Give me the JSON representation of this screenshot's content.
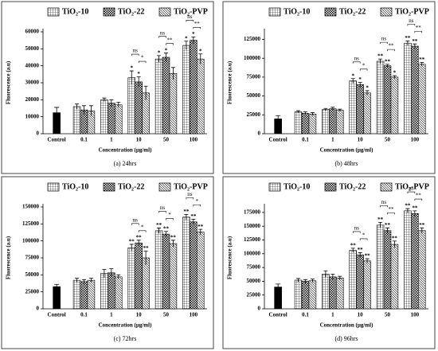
{
  "chart_data": [
    {
      "type": "bar",
      "caption": "(a) 24hrs",
      "xlabel": "Concentration (µg/ml)",
      "ylabel": "Fluorescence (a.u)",
      "categories": [
        "Control",
        "0.1",
        "1",
        "10",
        "50",
        "100"
      ],
      "control": {
        "value": 12500,
        "error": 3000,
        "color": "#000000"
      },
      "series": [
        {
          "name": "TiO₂-10",
          "pattern": "grid",
          "color": "#000000",
          "values": [
            null,
            16000,
            20000,
            33000,
            44000,
            52000
          ],
          "errors": [
            null,
            1500,
            1000,
            4000,
            2000,
            2500
          ],
          "stars": [
            null,
            null,
            null,
            "*",
            "*",
            "*"
          ]
        },
        {
          "name": "TiO₂-22",
          "pattern": "checker",
          "color": "#000000",
          "values": [
            null,
            14000,
            18000,
            30500,
            45000,
            55000
          ],
          "errors": [
            null,
            2500,
            2000,
            3000,
            2500,
            2000
          ],
          "stars": [
            null,
            null,
            null,
            "*",
            "*",
            "*"
          ]
        },
        {
          "name": "TiO₂-PVP",
          "pattern": "hatch",
          "color": "#000000",
          "values": [
            null,
            13500,
            17000,
            24000,
            35500,
            44000
          ],
          "errors": [
            null,
            3000,
            1500,
            4000,
            3500,
            3000
          ],
          "stars": [
            null,
            null,
            null,
            null,
            null,
            "*"
          ]
        }
      ],
      "brackets": [
        null,
        null,
        null,
        [
          "ns",
          "*"
        ],
        [
          "ns",
          "**"
        ],
        [
          "ns",
          "**"
        ]
      ],
      "ylim": [
        0,
        60000
      ],
      "yticks": [
        0,
        10000,
        20000,
        30000,
        40000,
        50000,
        60000
      ]
    },
    {
      "type": "bar",
      "caption": "(b) 48hrs",
      "xlabel": "Concentration (µg/ml)",
      "ylabel": "Fluorescence (a.u)",
      "categories": [
        "Control",
        "0.1",
        "1",
        "10",
        "50",
        "100"
      ],
      "control": {
        "value": 20000,
        "error": 4000,
        "color": "#000000"
      },
      "series": [
        {
          "name": "TiO₂-10",
          "pattern": "grid",
          "color": "#000000",
          "values": [
            null,
            29000,
            32000,
            70000,
            96000,
            120000
          ],
          "errors": [
            null,
            1500,
            1500,
            3000,
            3000,
            3000
          ],
          "stars": [
            null,
            null,
            null,
            "*",
            "**",
            "**"
          ]
        },
        {
          "name": "TiO₂-22",
          "pattern": "checker",
          "color": "#000000",
          "values": [
            null,
            27000,
            33000,
            65000,
            90000,
            116000
          ],
          "errors": [
            null,
            2000,
            2000,
            3000,
            2000,
            3000
          ],
          "stars": [
            null,
            null,
            null,
            "*",
            "**",
            "**"
          ]
        },
        {
          "name": "TiO₂-PVP",
          "pattern": "hatch",
          "color": "#000000",
          "values": [
            null,
            26000,
            31000,
            54000,
            75000,
            92000
          ],
          "errors": [
            null,
            2000,
            1500,
            3000,
            2000,
            2500
          ],
          "stars": [
            null,
            null,
            null,
            "*",
            "*",
            "**"
          ]
        }
      ],
      "brackets": [
        null,
        null,
        null,
        [
          "ns",
          "*"
        ],
        [
          "ns",
          "**"
        ],
        [
          "ns",
          "**"
        ]
      ],
      "ylim": [
        0,
        135000
      ],
      "yticks": [
        0,
        25000,
        50000,
        75000,
        100000,
        125000
      ]
    },
    {
      "type": "bar",
      "caption": "(c) 72hrs",
      "xlabel": "Concentration (µg/ml)",
      "ylabel": "Fluorescence (a.u)",
      "categories": [
        "Control",
        "0.1",
        "1",
        "10",
        "50",
        "100"
      ],
      "control": {
        "value": 33000,
        "error": 3000,
        "color": "#000000"
      },
      "series": [
        {
          "name": "TiO₂-10",
          "pattern": "grid",
          "color": "#000000",
          "values": [
            null,
            42000,
            52000,
            90000,
            115000,
            135000
          ],
          "errors": [
            null,
            3000,
            6000,
            5000,
            4000,
            4000
          ],
          "stars": [
            null,
            null,
            null,
            "**",
            "**",
            "**"
          ]
        },
        {
          "name": "TiO₂-22",
          "pattern": "checker",
          "color": "#000000",
          "values": [
            null,
            40000,
            53000,
            97000,
            110000,
            128000
          ],
          "errors": [
            null,
            3000,
            6000,
            4000,
            4000,
            4000
          ],
          "stars": [
            null,
            null,
            null,
            "**",
            "**",
            "**"
          ]
        },
        {
          "name": "TiO₂-PVP",
          "pattern": "hatch",
          "color": "#000000",
          "values": [
            null,
            42000,
            47000,
            75000,
            96000,
            113000
          ],
          "errors": [
            null,
            3000,
            3000,
            10000,
            5000,
            4000
          ],
          "stars": [
            null,
            null,
            null,
            "**",
            "**",
            "**"
          ]
        }
      ],
      "brackets": [
        null,
        null,
        null,
        [
          "ns",
          "*"
        ],
        [
          "ns",
          "*"
        ],
        [
          "ns",
          "*"
        ]
      ],
      "ylim": [
        0,
        150000
      ],
      "yticks": [
        0,
        25000,
        50000,
        75000,
        100000,
        125000,
        150000
      ]
    },
    {
      "type": "bar",
      "caption": "(d) 96hrs",
      "xlabel": "Concentration (µg/ml)",
      "ylabel": "Fluorescence (a.u)",
      "categories": [
        "Control",
        "0.1",
        "1",
        "10",
        "50",
        "100"
      ],
      "control": {
        "value": 40000,
        "error": 5000,
        "color": "#000000"
      },
      "series": [
        {
          "name": "TiO₂-10",
          "pattern": "grid",
          "color": "#000000",
          "values": [
            null,
            52000,
            63000,
            106000,
            152000,
            178000
          ],
          "errors": [
            null,
            3000,
            6000,
            4000,
            5000,
            4000
          ],
          "stars": [
            null,
            null,
            null,
            "**",
            "**",
            "**"
          ]
        },
        {
          "name": "TiO₂-22",
          "pattern": "checker",
          "color": "#000000",
          "values": [
            null,
            50000,
            58000,
            98000,
            142000,
            173000
          ],
          "errors": [
            null,
            3000,
            5000,
            4000,
            5000,
            5000
          ],
          "stars": [
            null,
            null,
            null,
            "**",
            "**",
            "**"
          ]
        },
        {
          "name": "TiO₂-PVP",
          "pattern": "hatch",
          "color": "#000000",
          "values": [
            null,
            51000,
            56000,
            87000,
            117000,
            142000
          ],
          "errors": [
            null,
            3000,
            3000,
            4000,
            6000,
            5000
          ],
          "stars": [
            null,
            null,
            null,
            "**",
            "**",
            "**"
          ]
        }
      ],
      "brackets": [
        null,
        null,
        null,
        [
          "ns",
          "*"
        ],
        [
          "ns",
          "**"
        ],
        [
          "ns",
          "**"
        ]
      ],
      "ylim": [
        0,
        185000
      ],
      "yticks": [
        0,
        25000,
        50000,
        75000,
        100000,
        125000,
        150000,
        175000
      ]
    }
  ]
}
